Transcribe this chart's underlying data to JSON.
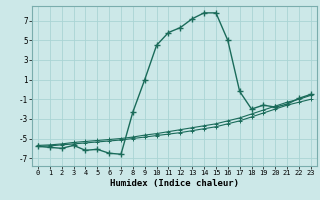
{
  "xlabel": "Humidex (Indice chaleur)",
  "background_color": "#cce8e8",
  "grid_color": "#aad4d4",
  "line_color": "#1a6b5a",
  "xlim": [
    -0.5,
    23.5
  ],
  "ylim": [
    -7.8,
    8.5
  ],
  "yticks": [
    7,
    5,
    3,
    1,
    -1,
    -3,
    -5,
    -7
  ],
  "xticks": [
    0,
    1,
    2,
    3,
    4,
    5,
    6,
    7,
    8,
    9,
    10,
    11,
    12,
    13,
    14,
    15,
    16,
    17,
    18,
    19,
    20,
    21,
    22,
    23
  ],
  "series1_x": [
    0,
    1,
    2,
    3,
    4,
    5,
    6,
    7,
    8,
    9,
    10,
    11,
    12,
    13,
    14,
    15,
    16,
    17,
    18,
    19,
    20,
    21,
    22,
    23
  ],
  "series1_y": [
    -5.8,
    -5.9,
    -6.0,
    -5.7,
    -6.2,
    -6.1,
    -6.5,
    -6.6,
    -2.3,
    1.0,
    4.5,
    5.8,
    6.3,
    7.2,
    7.8,
    7.8,
    5.0,
    -0.2,
    -2.0,
    -1.6,
    -1.8,
    -1.5,
    -0.9,
    -0.5
  ],
  "series2_x": [
    0,
    1,
    2,
    3,
    4,
    5,
    6,
    7,
    8,
    9,
    10,
    11,
    12,
    13,
    14,
    15,
    16,
    17,
    18,
    19,
    20,
    21,
    22,
    23
  ],
  "series2_y": [
    -5.8,
    -5.75,
    -5.65,
    -5.55,
    -5.45,
    -5.35,
    -5.25,
    -5.15,
    -5.0,
    -4.85,
    -4.7,
    -4.55,
    -4.4,
    -4.2,
    -4.0,
    -3.8,
    -3.5,
    -3.2,
    -2.8,
    -2.4,
    -2.0,
    -1.6,
    -1.3,
    -1.0
  ],
  "series3_x": [
    0,
    1,
    2,
    3,
    4,
    5,
    6,
    7,
    8,
    9,
    10,
    11,
    12,
    13,
    14,
    15,
    16,
    17,
    18,
    19,
    20,
    21,
    22,
    23
  ],
  "series3_y": [
    -5.7,
    -5.65,
    -5.55,
    -5.4,
    -5.3,
    -5.2,
    -5.1,
    -5.0,
    -4.85,
    -4.65,
    -4.5,
    -4.3,
    -4.1,
    -3.9,
    -3.7,
    -3.5,
    -3.2,
    -2.9,
    -2.5,
    -2.1,
    -1.7,
    -1.3,
    -1.0,
    -0.6
  ]
}
